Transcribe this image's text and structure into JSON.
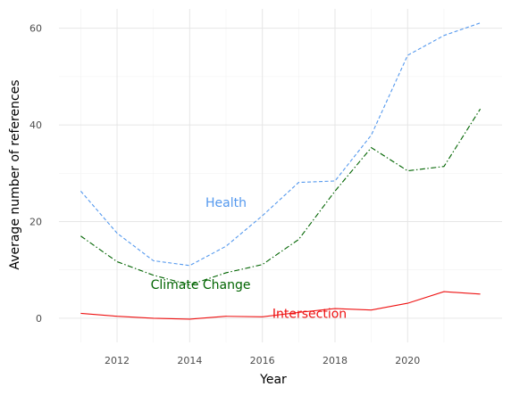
{
  "chart_data": {
    "type": "line",
    "title": "",
    "xlabel": "Year",
    "ylabel": "Average number of references",
    "xlim": [
      2010.4,
      2022.6
    ],
    "ylim": [
      -5,
      64
    ],
    "x_ticks": [
      2012,
      2014,
      2016,
      2018,
      2020
    ],
    "y_ticks": [
      0,
      20,
      40,
      60
    ],
    "grid": true,
    "legend": "none",
    "x": [
      2011,
      2012,
      2013,
      2014,
      2015,
      2016,
      2017,
      2018,
      2019,
      2020,
      2021,
      2022
    ],
    "series": [
      {
        "name": "Health",
        "color": "#5599ee",
        "dash": "dashed",
        "values": [
          26.3,
          17.6,
          11.9,
          10.9,
          14.9,
          21.2,
          28.1,
          28.4,
          37.9,
          54.4,
          58.5,
          61.1
        ],
        "label_pos": [
          2015.0,
          24.0
        ]
      },
      {
        "name": "Climate Change",
        "color": "#006400",
        "dash": "dashdot",
        "values": [
          17.0,
          11.7,
          8.9,
          6.9,
          9.4,
          11.1,
          16.3,
          26.3,
          35.3,
          30.5,
          31.4,
          43.3
        ],
        "label_pos": [
          2014.3,
          7.0
        ]
      },
      {
        "name": "Intersection",
        "color": "#ee1111",
        "dash": "solid",
        "values": [
          1.0,
          0.4,
          0.0,
          -0.2,
          0.4,
          0.3,
          1.2,
          2.0,
          1.7,
          3.1,
          5.5,
          5.0
        ],
        "label_pos": [
          2017.3,
          1.0
        ]
      }
    ]
  }
}
